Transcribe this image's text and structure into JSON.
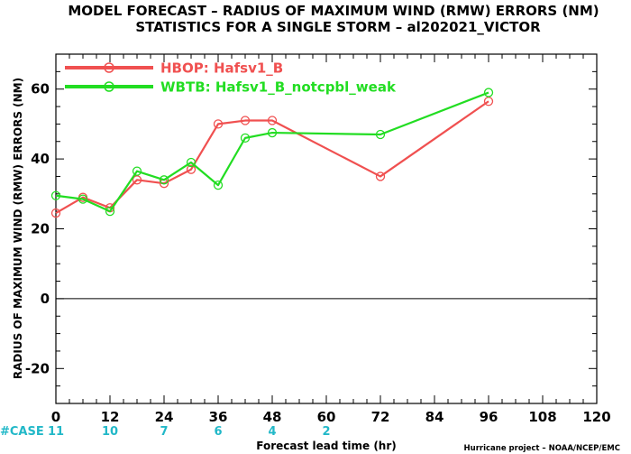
{
  "chart_data": {
    "type": "line",
    "title": "MODEL FORECAST – RADIUS OF MAXIMUM WIND (RMW) ERRORS (NM)",
    "subtitle": "STATISTICS FOR A SINGLE STORM – al202021_VICTOR",
    "xlabel": "Forecast lead time (hr)",
    "ylabel": "RADIUS OF MAXIMUM WIND (RMW) ERRORS (NM)",
    "xlim": [
      0,
      120
    ],
    "ylim": [
      -30,
      70
    ],
    "xticks": [
      0,
      12,
      24,
      36,
      48,
      60,
      72,
      84,
      96,
      108,
      120
    ],
    "xtick_labels": [
      "0",
      "12",
      "24",
      "36",
      "48",
      "60",
      "72",
      "84",
      "96",
      "108",
      "120"
    ],
    "yticks": [
      -20,
      0,
      20,
      40,
      60
    ],
    "ytick_labels": [
      "-20",
      "0",
      "20",
      "40",
      "60"
    ],
    "zero_line": true,
    "grid": false,
    "legend_position": "top-left",
    "series": [
      {
        "name": "HBOP: Hafsv1_B",
        "color": "#f05050",
        "x": [
          0,
          6,
          12,
          18,
          24,
          30,
          36,
          42,
          48,
          72,
          96
        ],
        "values": [
          24.5,
          29,
          26,
          34,
          33,
          37,
          50,
          51,
          51,
          35,
          56.5
        ]
      },
      {
        "name": "WBTB: Hafsv1_B_notcpbl_weak",
        "color": "#22dd22",
        "x": [
          0,
          6,
          12,
          18,
          24,
          30,
          36,
          42,
          48,
          72,
          96
        ],
        "values": [
          29.5,
          28.5,
          25,
          36.5,
          34,
          39,
          32.5,
          46,
          47.5,
          47,
          59
        ]
      }
    ],
    "case_label": "#CASE",
    "case_counts": [
      {
        "x": 0,
        "label": "11"
      },
      {
        "x": 12,
        "label": "10"
      },
      {
        "x": 24,
        "label": "7"
      },
      {
        "x": 36,
        "label": "6"
      },
      {
        "x": 48,
        "label": "4"
      },
      {
        "x": 60,
        "label": "2"
      }
    ],
    "credit": "Hurricane project – NOAA/NCEP/EMC",
    "colors": {
      "case_text": "#22b8c8"
    }
  }
}
